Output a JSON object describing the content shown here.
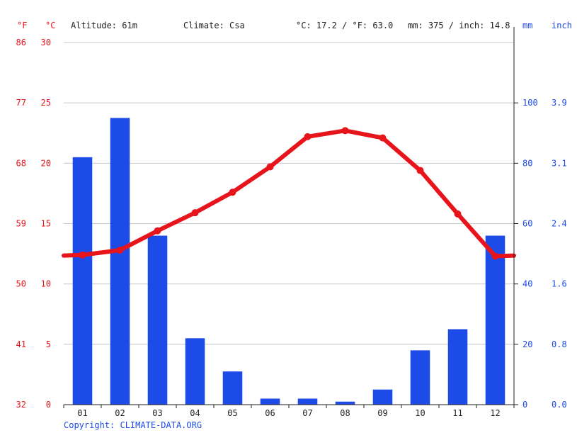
{
  "header": {
    "f_unit": "°F",
    "c_unit": "°C",
    "altitude": "Altitude: 61m",
    "climate": "Climate: Csa",
    "avg_temp": "°C: 17.2 / °F: 63.0",
    "precip_total": "mm: 375 / inch: 14.8",
    "mm_unit": "mm",
    "inch_unit": "inch"
  },
  "axes": {
    "fahrenheit_ticks": [
      "86",
      "77",
      "68",
      "59",
      "50",
      "41",
      "32"
    ],
    "celsius_ticks": [
      "30",
      "25",
      "20",
      "15",
      "10",
      "5",
      "0"
    ],
    "mm_ticks": [
      "100",
      "80",
      "60",
      "40",
      "20",
      "0"
    ],
    "inch_ticks": [
      "3.9",
      "3.1",
      "2.4",
      "1.6",
      "0.8",
      "0.0"
    ]
  },
  "copyright": "Copyright: CLIMATE-DATA.ORG",
  "colors": {
    "temperature": "#e8141b",
    "precipitation": "#1d4be8",
    "grid": "#c8c8c8",
    "axis": "#222222"
  },
  "chart_data": {
    "type": "bar+line",
    "categories": [
      "01",
      "02",
      "03",
      "04",
      "05",
      "06",
      "07",
      "08",
      "09",
      "10",
      "11",
      "12"
    ],
    "series": [
      {
        "type": "bar",
        "axis": "mm",
        "values": [
          82,
          95,
          56,
          22,
          11,
          2,
          2,
          1,
          5,
          18,
          25,
          56
        ]
      },
      {
        "type": "line",
        "axis": "°C",
        "values": [
          12.4,
          12.8,
          14.4,
          15.9,
          17.6,
          19.7,
          22.2,
          22.7,
          22.1,
          19.4,
          15.8,
          12.3
        ]
      }
    ],
    "temp_ylim": [
      0,
      30
    ],
    "precip_ylim": [
      0,
      120
    ],
    "grid": true
  }
}
